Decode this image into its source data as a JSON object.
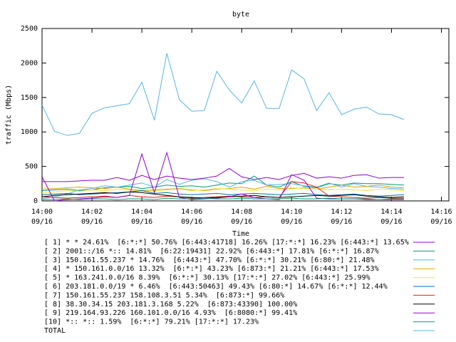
{
  "chart_data": {
    "type": "line",
    "title": "byte",
    "x_label": "Time",
    "y_label": "traffic (Mbps)",
    "xlim": [
      0,
      16.3
    ],
    "xticks": [
      {
        "value": 0,
        "label": "14:00",
        "date": "09/16"
      },
      {
        "value": 2,
        "label": "14:02",
        "date": "09/16"
      },
      {
        "value": 4,
        "label": "14:04",
        "date": "09/16"
      },
      {
        "value": 6,
        "label": "14:06",
        "date": "09/16"
      },
      {
        "value": 8,
        "label": "14:08",
        "date": "09/16"
      },
      {
        "value": 10,
        "label": "14:10",
        "date": "09/16"
      },
      {
        "value": 12,
        "label": "14:12",
        "date": "09/16"
      },
      {
        "value": 14,
        "label": "14:14",
        "date": "09/16"
      },
      {
        "value": 16,
        "label": "14:16",
        "date": "09/16"
      }
    ],
    "ylim": [
      0,
      2500
    ],
    "yticks": [
      0,
      500,
      1000,
      1500,
      2000,
      2500
    ],
    "x": [
      0,
      0.5,
      1,
      1.5,
      2,
      2.5,
      3,
      3.5,
      4,
      4.5,
      5,
      5.5,
      6,
      6.5,
      7,
      7.5,
      8,
      8.5,
      9,
      9.5,
      10,
      10.5,
      11,
      11.5,
      12,
      12.5,
      13,
      13.5,
      14,
      14.5
    ],
    "series": [
      {
        "name": "[ 1] * * 24.61%  [6:*:*] 50.76% [6:443:41718] 16.26% [17:*:*] 16.23% [6:443:*] 13.65%",
        "color": "#9400d3",
        "values": [
          280,
          280,
          280,
          290,
          300,
          300,
          340,
          300,
          370,
          310,
          360,
          330,
          310,
          330,
          360,
          470,
          350,
          310,
          340,
          310,
          370,
          400,
          330,
          350,
          330,
          370,
          380,
          330,
          340,
          340
        ]
      },
      {
        "name": "[ 2] 2001::/16 *:: 14.81%  [6:22:19431] 22.92% [6:443:*] 17.81% [6:*:*] 16.87%",
        "color": "#009e73",
        "values": [
          150,
          160,
          170,
          150,
          160,
          190,
          200,
          210,
          180,
          200,
          230,
          210,
          220,
          200,
          230,
          260,
          250,
          360,
          230,
          200,
          280,
          210,
          190,
          250,
          230,
          260,
          250,
          250,
          240,
          230
        ]
      },
      {
        "name": "[ 3] 150.161.55.237 * 14.76%  [6:443:*] 47.70% [6:*:*] 30.21% [6:80:*] 21.48%",
        "color": "#56b4e9",
        "values": [
          30,
          60,
          100,
          160,
          180,
          220,
          200,
          230,
          260,
          200,
          310,
          240,
          300,
          320,
          280,
          200,
          280,
          300,
          230,
          240,
          250,
          220,
          200,
          260,
          200,
          250,
          210,
          200,
          180,
          170
        ]
      },
      {
        "name": "[ 4] * 150.161.0.0/16 13.32%  [6:*:*] 43.23% [6:873:*] 21.21% [6:443:*] 17.53%",
        "color": "#e69f00",
        "values": [
          170,
          180,
          190,
          200,
          190,
          180,
          200,
          170,
          150,
          160,
          170,
          180,
          160,
          150,
          170,
          180,
          200,
          170,
          210,
          180,
          180,
          190,
          170,
          200,
          230,
          200,
          210,
          230,
          200,
          190
        ]
      },
      {
        "name": "[ 5] * 163.241.0.0/16 8.39%  [6:*:*] 30.13% [17:*:*] 27.02% [6:443:*] 25.99%",
        "color": "#f0e442",
        "values": [
          120,
          130,
          150,
          140,
          160,
          150,
          170,
          160,
          140,
          150,
          160,
          170,
          150,
          160,
          180,
          170,
          160,
          150,
          170,
          160,
          190,
          180,
          170,
          160,
          170,
          160,
          150,
          170,
          160,
          150
        ]
      },
      {
        "name": "[ 6] 203.181.0.0/19 * 6.46%  [6:443:50463] 49.43% [6:80:*] 14.67% [6:*:*] 12.44%",
        "color": "#0072b2",
        "values": [
          90,
          100,
          110,
          90,
          100,
          110,
          120,
          130,
          150,
          110,
          120,
          100,
          90,
          100,
          110,
          90,
          100,
          110,
          100,
          90,
          100,
          110,
          90,
          80,
          90,
          100,
          80,
          70,
          80,
          90
        ]
      },
      {
        "name": "[ 7] 150.161.55.237 158.108.3.51 5.34%  [6:873:*] 99.66%",
        "color": "#e51e10",
        "values": [
          60,
          50,
          40,
          50,
          60,
          70,
          50,
          80,
          60,
          50,
          70,
          60,
          40,
          50,
          60,
          70,
          60,
          50,
          60,
          50,
          280,
          260,
          200,
          70,
          60,
          50,
          40,
          50,
          40,
          40
        ]
      },
      {
        "name": "[ 8] 38.30.34.15 203.181.3.168 5.22%  [6:873:43390] 100.00%",
        "color": "#000000",
        "values": [
          60,
          80,
          90,
          100,
          110,
          120,
          110,
          130,
          120,
          100,
          80,
          60,
          50,
          40,
          50,
          60,
          70,
          80,
          60,
          50,
          60,
          70,
          80,
          70,
          80,
          90,
          70,
          60,
          50,
          60
        ]
      },
      {
        "name": "[ 9] 219.164.93.226 160.101.0.0/16 4.93%  [6:8080:*] 99.41%",
        "color": "#9400d3",
        "values": [
          350,
          0,
          20,
          30,
          40,
          60,
          50,
          80,
          680,
          120,
          700,
          50,
          20,
          30,
          40,
          60,
          100,
          50,
          30,
          20,
          380,
          300,
          40,
          30,
          30,
          30,
          20,
          20,
          20,
          20
        ]
      },
      {
        "name": "[10] *:: *:: 1.59%  [6:*:*] 79.21% [17:*:*] 17.23%",
        "color": "#009e73",
        "values": [
          20,
          20,
          30,
          20,
          30,
          30,
          20,
          30,
          30,
          20,
          40,
          30,
          30,
          40,
          30,
          30,
          40,
          30,
          30,
          30,
          40,
          30,
          30,
          40,
          30,
          30,
          30,
          20,
          30,
          30
        ]
      },
      {
        "name": "TOTAL",
        "color": "#56b4e9",
        "values": [
          1390,
          1010,
          950,
          980,
          1270,
          1350,
          1380,
          1410,
          1720,
          1170,
          2140,
          1470,
          1300,
          1310,
          1880,
          1610,
          1420,
          1740,
          1340,
          1340,
          1900,
          1770,
          1310,
          1570,
          1250,
          1330,
          1360,
          1260,
          1250,
          1180
        ]
      }
    ]
  }
}
